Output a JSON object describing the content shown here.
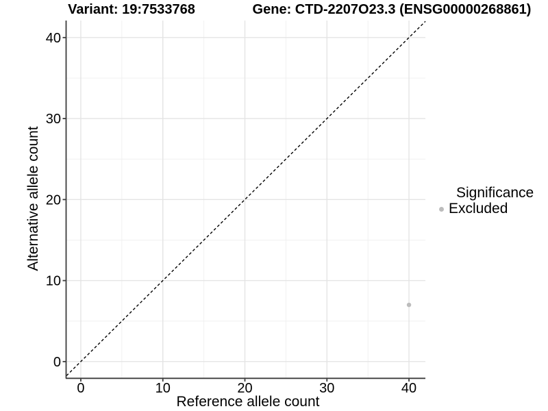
{
  "chart_data": {
    "type": "scatter",
    "titles": {
      "left": "Variant: 19:7533768",
      "right": "Gene: CTD-2207O23.3 (ENSG00000268861)"
    },
    "xlabel": "Reference allele count",
    "ylabel": "Alternative allele count",
    "xlim": [
      -1.75,
      42.0
    ],
    "ylim": [
      -2.0,
      42.1
    ],
    "xticks": [
      0,
      10,
      20,
      30,
      40
    ],
    "yticks": [
      0,
      10,
      20,
      30,
      40
    ],
    "minor_xticks": [
      5,
      15,
      25,
      35
    ],
    "minor_yticks": [
      5,
      15,
      25,
      35
    ],
    "grid": "major and minor, light gray on white",
    "legend_position": "right",
    "points": [
      {
        "x": 40,
        "y": 7,
        "significance": "Excluded"
      }
    ],
    "identity_line": {
      "equation": "y = x",
      "style": "dashed",
      "color": "#000000"
    },
    "legend": {
      "title": "Significance",
      "entries": [
        {
          "label": "Excluded",
          "marker": "circle",
          "color": "#bcbcbc"
        }
      ]
    },
    "colors": {
      "point": "#bcbcbc",
      "grid_major": "#e4e4e4",
      "grid_minor": "#f0f0f0",
      "axis": "#3c3c3c",
      "text": "#000000",
      "background": "#ffffff"
    }
  }
}
